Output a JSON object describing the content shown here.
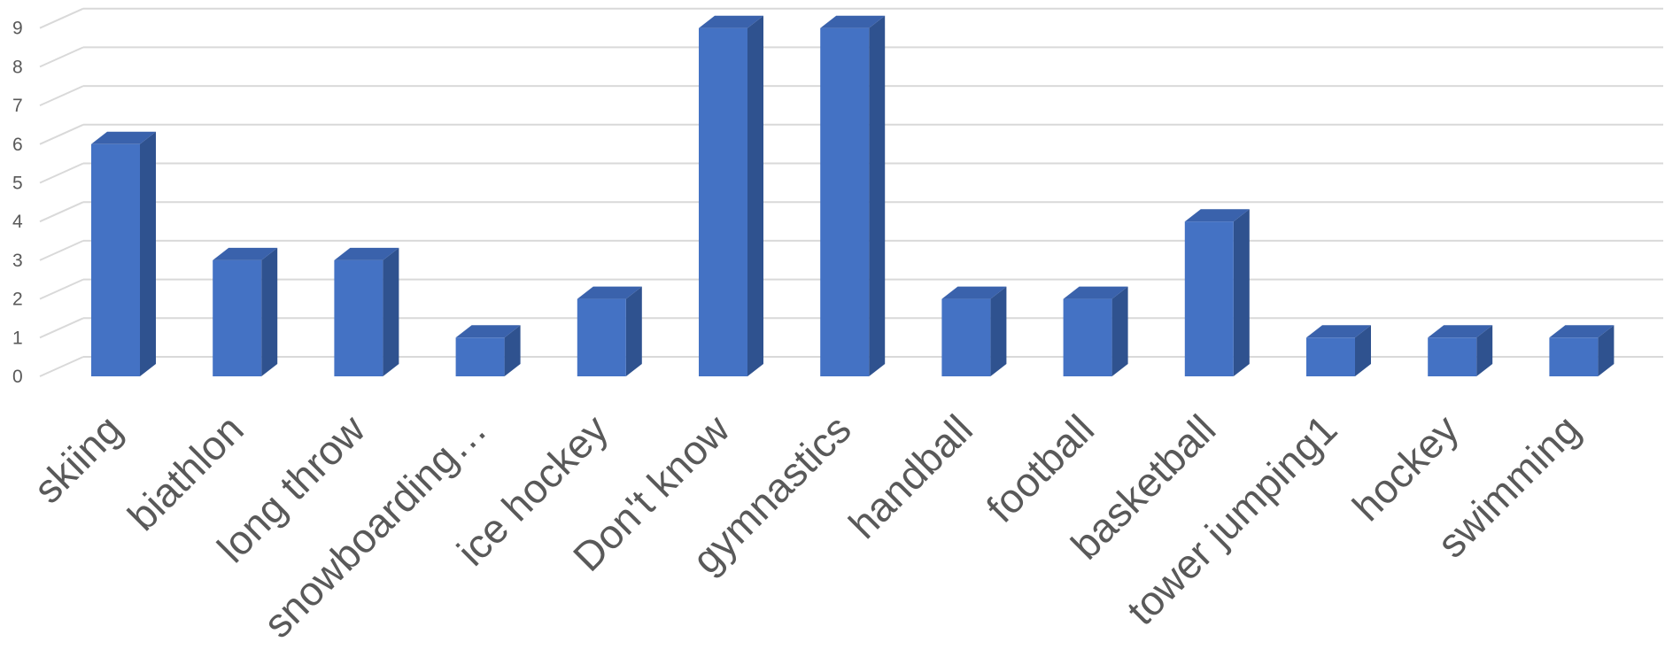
{
  "chart_data": {
    "type": "bar",
    "style": "3d-column",
    "categories": [
      "skiing",
      "biathlon",
      "long throw",
      "snowboarding…",
      "ice hockey",
      "Don't know",
      "gymnastics",
      "handball",
      "football",
      "basketball",
      "tower jumping1",
      "hockey",
      "swimming"
    ],
    "values": [
      6,
      3,
      3,
      1,
      2,
      9,
      9,
      2,
      2,
      4,
      1,
      1,
      1
    ],
    "y_ticks": [
      "0",
      "1",
      "2",
      "3",
      "4",
      "5",
      "6",
      "7",
      "8",
      "9"
    ],
    "ylim": [
      0,
      9.5
    ],
    "grid": true,
    "legend": "none",
    "title": "",
    "xlabel": "",
    "ylabel": "",
    "colors": {
      "bar_front": "#4472C4",
      "bar_side": "#2F528F",
      "bar_top": "#3A62AC",
      "grid": "#D9D9D9",
      "text": "#595959"
    }
  }
}
